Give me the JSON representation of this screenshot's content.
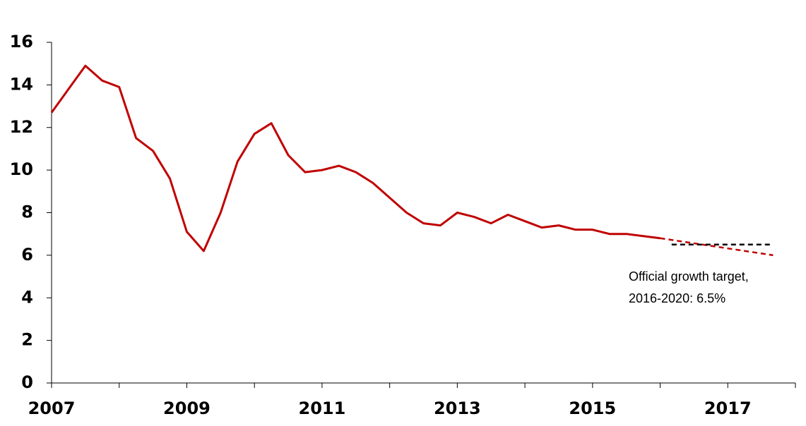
{
  "chart_data": {
    "type": "line",
    "xlim": [
      2007,
      2018
    ],
    "xticks": [
      2007,
      2009,
      2011,
      2013,
      2015,
      2017
    ],
    "xminorticks": [
      2008,
      2010,
      2012,
      2014,
      2016,
      2018
    ],
    "ylim": [
      0,
      16
    ],
    "yticks": [
      0,
      2,
      4,
      6,
      8,
      10,
      12,
      14,
      16
    ],
    "grid": false,
    "series": [
      {
        "color": "#c00000",
        "dash": false,
        "x": [
          2007,
          2007.25,
          2007.5,
          2007.75,
          2008,
          2008.25,
          2008.5,
          2008.75,
          2009,
          2009.25,
          2009.5,
          2009.75,
          2010,
          2010.25,
          2010.5,
          2010.75,
          2011,
          2011.25,
          2011.5,
          2011.75,
          2012,
          2012.25,
          2012.5,
          2012.75,
          2013,
          2013.25,
          2013.5,
          2013.75,
          2014,
          2014.25,
          2014.5,
          2014.75,
          2015,
          2015.25,
          2015.5,
          2015.75,
          2016
        ],
        "values": [
          12.7,
          13.8,
          14.9,
          14.2,
          13.9,
          11.5,
          10.9,
          9.6,
          7.1,
          6.2,
          8.0,
          10.4,
          11.7,
          12.2,
          10.7,
          9.9,
          10.0,
          10.2,
          9.9,
          9.4,
          8.7,
          8.0,
          7.5,
          7.4,
          8.0,
          7.8,
          7.5,
          7.9,
          7.6,
          7.3,
          7.4,
          7.2,
          7.2,
          7.0,
          7.0,
          6.9,
          6.8
        ]
      },
      {
        "color": "#c00000",
        "dash": true,
        "x": [
          2016,
          2017.67
        ],
        "values": [
          6.8,
          6.0
        ]
      },
      {
        "color": "#000000",
        "dash": true,
        "x": [
          2016.17,
          2017.67
        ],
        "values": [
          6.5,
          6.5
        ]
      }
    ],
    "annotation": [
      "Official growth target,",
      "2016-2020: 6.5%"
    ]
  }
}
